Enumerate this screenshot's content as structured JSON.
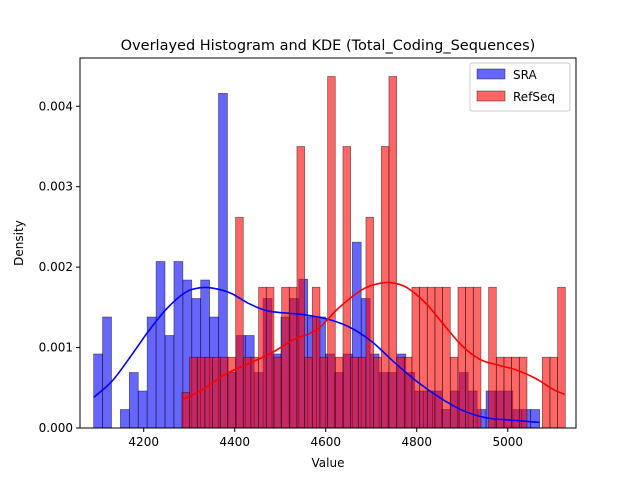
{
  "chart_data": {
    "type": "histogram",
    "title": "Overlayed Histogram and KDE (Total_Coding_Sequences)",
    "xlabel": "Value",
    "ylabel": "Density",
    "xlim": [
      4060,
      5150
    ],
    "ylim": [
      0,
      0.0046
    ],
    "xticks": [
      4200,
      4400,
      4600,
      4800,
      5000
    ],
    "yticks": [
      0.0,
      0.001,
      0.002,
      0.003,
      0.004
    ],
    "ytick_labels": [
      "0.000",
      "0.001",
      "0.002",
      "0.003",
      "0.004"
    ],
    "grid": false,
    "legend_position": "top-right",
    "series": [
      {
        "name": "SRA",
        "color": "#0000ff",
        "bar_alpha": 0.6,
        "bin_start": 4090,
        "bin_width": 19.6,
        "values": [
          0.00092,
          0.00138,
          0,
          0.00023,
          0.00069,
          0.00046,
          0.00138,
          0.00207,
          0.00115,
          0.00207,
          0.00184,
          0.00161,
          0.00184,
          0.00138,
          0.00416,
          0.00069,
          0.00115,
          0.00115,
          0.00069,
          0.00161,
          0.00092,
          0.00138,
          0.00161,
          0.00185,
          0.00138,
          0.00138,
          0.00092,
          0.00069,
          0.00092,
          0.00231,
          0.00161,
          0.00092,
          0.00069,
          0.00069,
          0.00092,
          0.00069,
          0.00046,
          0.00046,
          0.00046,
          0.00023,
          0.00046,
          0.00069,
          0.00046,
          0.00023,
          0.00046,
          0.00046,
          0.00046,
          0.00023,
          0.00023,
          0.00023
        ]
      },
      {
        "name": "RefSeq",
        "color": "#ff0000",
        "bar_alpha": 0.6,
        "bin_start": 4284,
        "bin_width": 16.85,
        "values": [
          0.00044,
          0.00088,
          0.00088,
          0.00088,
          0.00088,
          0.00088,
          0.00088,
          0.00262,
          0.00088,
          0.00088,
          0.00175,
          0.00175,
          0.00088,
          0.00175,
          0.00175,
          0.0035,
          0.00088,
          0.00175,
          0.00088,
          0.00437,
          0.00088,
          0.0035,
          0.00088,
          0.00088,
          0.00262,
          0.00088,
          0.0035,
          0.00437,
          0.00088,
          0.00088,
          0.00175,
          0.00175,
          0.00175,
          0.00175,
          0.00175,
          0.00088,
          0.00175,
          0.00175,
          0.00175,
          0,
          0.00175,
          0.00088,
          0.00088,
          0.00088,
          0.00088,
          0,
          0,
          0.00088,
          0.00088,
          0.00175
        ]
      }
    ],
    "kde": [
      {
        "name": "SRA",
        "color": "#0000ff",
        "x": [
          4090,
          4130,
          4170,
          4210,
          4250,
          4290,
          4320,
          4350,
          4390,
          4430,
          4470,
          4510,
          4550,
          4600,
          4650,
          4700,
          4750,
          4800,
          4850,
          4900,
          4950,
          5000,
          5070
        ],
        "y": [
          0.00038,
          0.00058,
          0.00088,
          0.0012,
          0.00148,
          0.00168,
          0.00174,
          0.00174,
          0.00168,
          0.00155,
          0.00146,
          0.00143,
          0.00141,
          0.00136,
          0.00126,
          0.00108,
          0.00082,
          0.00058,
          0.00038,
          0.00022,
          0.00013,
          0.0001,
          7e-05
        ]
      },
      {
        "name": "RefSeq",
        "color": "#ff0000",
        "x": [
          4285,
          4330,
          4380,
          4430,
          4480,
          4530,
          4580,
          4630,
          4680,
          4720,
          4750,
          4780,
          4820,
          4860,
          4900,
          4940,
          4980,
          5020,
          5060,
          5100,
          5125
        ],
        "y": [
          0.00035,
          0.00048,
          0.00067,
          0.0008,
          0.00093,
          0.0011,
          0.00122,
          0.0015,
          0.00172,
          0.0018,
          0.0018,
          0.00174,
          0.00155,
          0.00128,
          0.00102,
          0.00085,
          0.00078,
          0.00072,
          0.00062,
          0.00048,
          0.00042
        ]
      }
    ]
  }
}
